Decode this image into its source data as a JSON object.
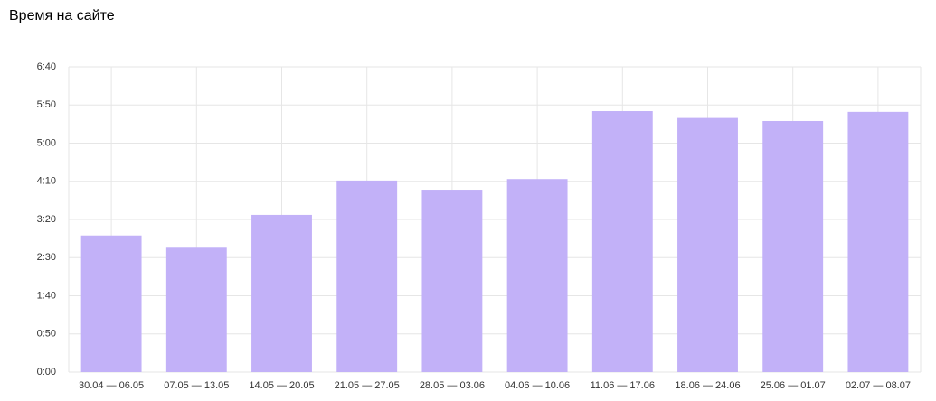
{
  "chart_data": {
    "type": "bar",
    "title": "Время на сайте",
    "categories": [
      "30.04 — 06.05",
      "07.05 — 13.05",
      "14.05 — 20.05",
      "21.05 — 27.05",
      "28.05 — 03.06",
      "04.06 — 10.06",
      "11.06 — 17.06",
      "18.06 — 24.06",
      "25.06 — 01.07",
      "02.07 — 08.07"
    ],
    "values": [
      179,
      163,
      206,
      251,
      239,
      253,
      342,
      333,
      329,
      341
    ],
    "color": "#c2b1f8",
    "ylim": [
      0,
      400
    ],
    "yticks": [
      {
        "value": 0,
        "label": "0:00"
      },
      {
        "value": 50,
        "label": "0:50"
      },
      {
        "value": 100,
        "label": "1:40"
      },
      {
        "value": 150,
        "label": "2:30"
      },
      {
        "value": 200,
        "label": "3:20"
      },
      {
        "value": 250,
        "label": "4:10"
      },
      {
        "value": 300,
        "label": "5:00"
      },
      {
        "value": 350,
        "label": "5:50"
      },
      {
        "value": 400,
        "label": "6:40"
      }
    ],
    "grid": true
  }
}
